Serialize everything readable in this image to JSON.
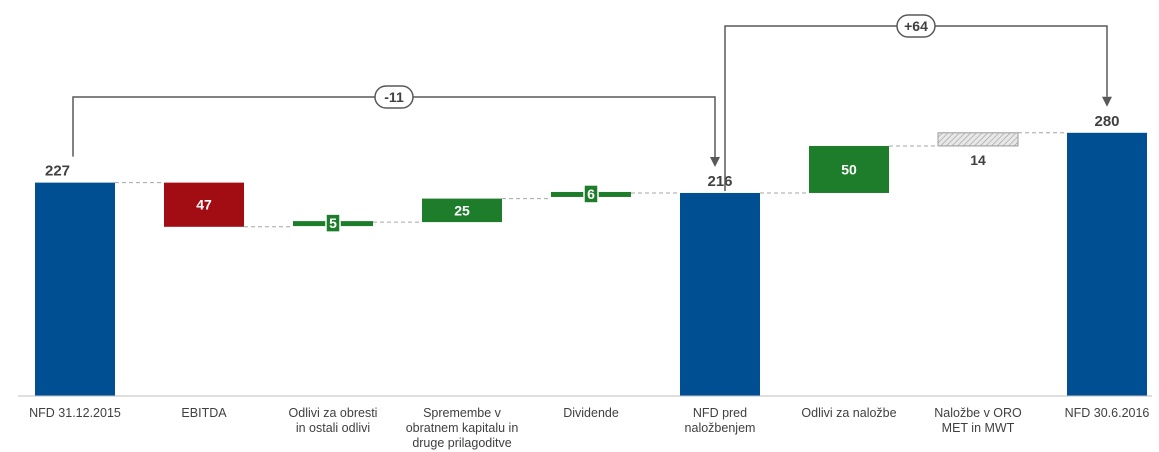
{
  "chart_data": {
    "type": "bar",
    "subtype": "waterfall",
    "categories": [
      [
        "NFD 31.12.2015"
      ],
      [
        "EBITDA"
      ],
      [
        "Odlivi za obresti",
        "in ostali odlivi"
      ],
      [
        "Spremembe v",
        "obratnem kapitalu in",
        "druge prilagoditve"
      ],
      [
        "Dividende"
      ],
      [
        "NFD pred",
        "naložbenjem"
      ],
      [
        "Odlivi za naložbe"
      ],
      [
        "Naložbe v ORO",
        "MET in MWT"
      ],
      [
        "NFD 30.6.2016"
      ]
    ],
    "steps": [
      {
        "kind": "total",
        "start": 0,
        "end": 227,
        "label": "227",
        "color": "#004f93"
      },
      {
        "kind": "delta",
        "start": 227,
        "end": 180,
        "label": "47",
        "color": "#a20d14"
      },
      {
        "kind": "delta",
        "start": 180,
        "end": 185,
        "label": "5",
        "color": "#1e7d2b"
      },
      {
        "kind": "delta",
        "start": 185,
        "end": 210,
        "label": "25",
        "color": "#1e7d2b"
      },
      {
        "kind": "delta",
        "start": 210,
        "end": 216,
        "label": "6",
        "color": "#1e7d2b"
      },
      {
        "kind": "total",
        "start": 0,
        "end": 216,
        "label": "216",
        "color": "#004f93"
      },
      {
        "kind": "delta",
        "start": 216,
        "end": 266,
        "label": "50",
        "color": "#1e7d2b"
      },
      {
        "kind": "delta",
        "start": 266,
        "end": 280,
        "label": "14",
        "color": "hatched"
      },
      {
        "kind": "total",
        "start": 0,
        "end": 280,
        "label": "280",
        "color": "#004f93"
      }
    ],
    "brackets": [
      {
        "from": 0,
        "to": 5,
        "label": "-11"
      },
      {
        "from": 5,
        "to": 8,
        "label": "+64"
      }
    ],
    "ylim": [
      0,
      280
    ],
    "grid": false,
    "legend": "none"
  }
}
